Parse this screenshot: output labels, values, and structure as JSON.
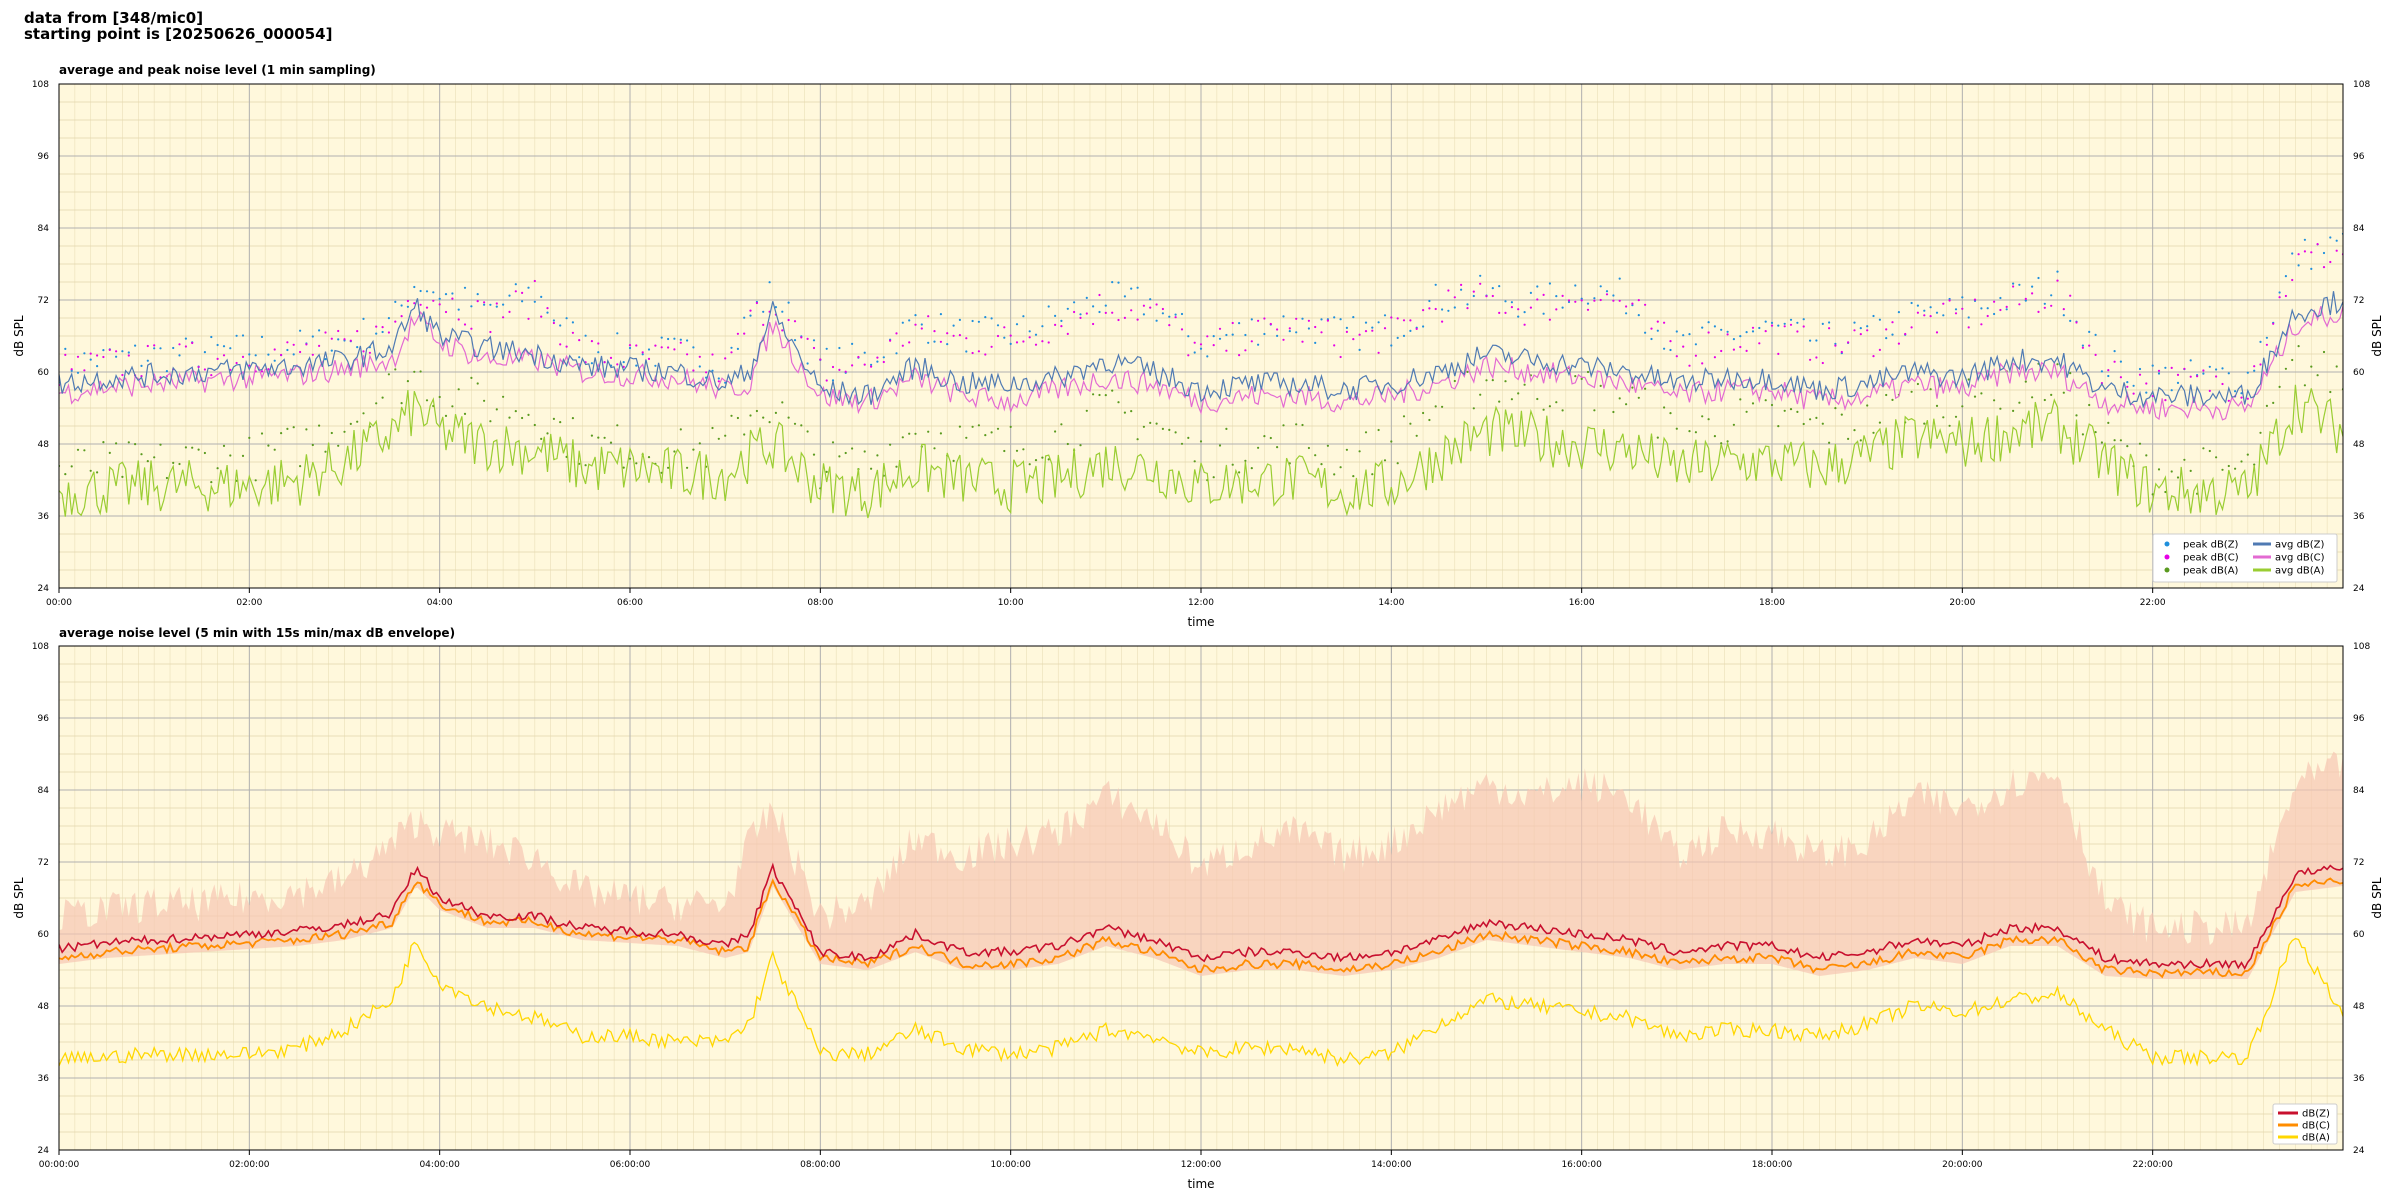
{
  "header": {
    "line1": "data from [348/mic0]",
    "line2": "starting point is [20250626_000054]"
  },
  "colors": {
    "plot_bg": "#fff8dc",
    "peak_z": "#1f8fdc",
    "peak_c": "#e600e6",
    "peak_a": "#5a9a1f",
    "avg_z": "#4f7ab3",
    "avg_c": "#e36ad2",
    "avg_a": "#9acd32",
    "b_z": "#c8102e",
    "b_c": "#ff8c00",
    "b_a": "#ffd700",
    "envelope": "#f7c6b2"
  },
  "chart_data": [
    {
      "type": "line",
      "title": "average and peak noise level (1 min sampling)",
      "xlabel": "time",
      "ylabel": "dB SPL",
      "ylim": [
        24,
        108
      ],
      "xlim": [
        0,
        24
      ],
      "grid": true,
      "legend_position": "bottom-right",
      "x_tick_labels": [
        "00:00",
        "02:00",
        "04:00",
        "06:00",
        "08:00",
        "10:00",
        "12:00",
        "14:00",
        "16:00",
        "18:00",
        "20:00",
        "22:00"
      ],
      "y_tick_labels": [
        "24",
        "36",
        "48",
        "60",
        "72",
        "84",
        "96",
        "108"
      ],
      "legend": [
        "peak dB(Z)",
        "peak dB(C)",
        "peak dB(A)",
        "avg dB(Z)",
        "avg dB(C)",
        "avg dB(A)"
      ],
      "x": [
        0,
        0.5,
        1,
        1.5,
        2,
        2.5,
        3,
        3.5,
        3.75,
        4,
        4.5,
        5,
        5.5,
        6,
        6.5,
        7,
        7.25,
        7.5,
        8,
        8.5,
        9,
        9.5,
        10,
        10.5,
        11,
        11.5,
        12,
        12.5,
        13,
        13.5,
        14,
        14.5,
        15,
        15.5,
        16,
        16.5,
        17,
        17.5,
        18,
        18.5,
        19,
        19.5,
        20,
        20.5,
        21,
        21.5,
        22,
        22.5,
        23,
        23.5,
        24
      ],
      "series": [
        {
          "name": "avg dB(Z)",
          "values": [
            58,
            59,
            59.5,
            60,
            60.5,
            61,
            62,
            64,
            71,
            66,
            64,
            63,
            61,
            60.5,
            60,
            58,
            60,
            70,
            57,
            56,
            61,
            58,
            58,
            59,
            62,
            60,
            57,
            58,
            58,
            57,
            58,
            60,
            63,
            62,
            61,
            60,
            58,
            59,
            59,
            57,
            58,
            60,
            59,
            62,
            62,
            57,
            56,
            56,
            56,
            70,
            72
          ]
        },
        {
          "name": "avg dB(C)",
          "values": [
            56.5,
            57.5,
            58,
            58.5,
            59,
            59.5,
            60.5,
            62,
            69,
            65,
            62,
            62,
            60,
            59.5,
            59,
            57,
            58,
            68,
            56,
            55,
            59,
            56,
            55,
            57,
            59,
            58,
            55,
            56,
            56,
            55,
            56,
            58,
            61,
            60,
            59,
            58,
            56,
            57,
            57,
            55,
            56,
            58,
            57,
            60,
            60,
            55,
            54,
            54,
            54,
            68,
            70
          ]
        },
        {
          "name": "avg dB(A)",
          "values": [
            40,
            40.5,
            41,
            41,
            41,
            42,
            45,
            50,
            54,
            50,
            48,
            47,
            44,
            44,
            43,
            43,
            46,
            48,
            41,
            40,
            44,
            42,
            41,
            42,
            45,
            44,
            41,
            42,
            42,
            40,
            41,
            46,
            50,
            49,
            48,
            47,
            44,
            45,
            45,
            44,
            46,
            49,
            48,
            50,
            51,
            45,
            40,
            40,
            40,
            55,
            50
          ]
        },
        {
          "name": "peak dB(Z)",
          "values": [
            60,
            61,
            61.5,
            62,
            62.5,
            63,
            64,
            67,
            74,
            72,
            69,
            72,
            63,
            62,
            62,
            60,
            68,
            72,
            60,
            61,
            67,
            65,
            65,
            68,
            71,
            70,
            63,
            66,
            67,
            65,
            66,
            71,
            72,
            70,
            73,
            71,
            63,
            65,
            66,
            64,
            65,
            68,
            69,
            71,
            73,
            60,
            58,
            58,
            58,
            78,
            80
          ]
        },
        {
          "name": "peak dB(C)",
          "values": [
            59,
            60,
            60.5,
            61,
            61.5,
            62,
            63,
            66,
            73,
            71,
            68,
            71,
            62,
            61,
            61,
            59,
            67,
            71,
            59,
            60,
            66,
            64,
            64,
            67,
            70,
            69,
            62,
            65,
            66,
            64,
            65,
            70,
            71,
            69,
            72,
            70,
            62,
            64,
            65,
            63,
            64,
            67,
            68,
            70,
            72,
            59,
            57,
            57,
            57,
            77,
            79
          ]
        },
        {
          "name": "peak dB(A)",
          "values": [
            42,
            43,
            43,
            44,
            44,
            46,
            50,
            56,
            58,
            55,
            53,
            52,
            46,
            46,
            45,
            46,
            52,
            53,
            43,
            43,
            49,
            47,
            46,
            48,
            52,
            50,
            44,
            46,
            47,
            44,
            46,
            53,
            57,
            55,
            56,
            54,
            48,
            50,
            51,
            49,
            50,
            54,
            53,
            55,
            57,
            47,
            42,
            42,
            42,
            60,
            57
          ]
        }
      ]
    },
    {
      "type": "line",
      "title": "average noise level (5 min with 15s min/max dB envelope)",
      "xlabel": "time",
      "ylabel": "dB SPL",
      "ylim": [
        24,
        108
      ],
      "xlim": [
        0,
        24
      ],
      "grid": true,
      "legend_position": "bottom-right",
      "x_tick_labels": [
        "00:00:00",
        "02:00:00",
        "04:00:00",
        "06:00:00",
        "08:00:00",
        "10:00:00",
        "12:00:00",
        "14:00:00",
        "16:00:00",
        "18:00:00",
        "20:00:00",
        "22:00:00"
      ],
      "y_tick_labels": [
        "24",
        "36",
        "48",
        "60",
        "72",
        "84",
        "96",
        "108"
      ],
      "legend": [
        "dB(Z)",
        "dB(C)",
        "dB(A)"
      ],
      "x": [
        0,
        0.5,
        1,
        1.5,
        2,
        2.5,
        3,
        3.5,
        3.75,
        4,
        4.5,
        5,
        5.5,
        6,
        6.5,
        7,
        7.25,
        7.5,
        8,
        8.5,
        9,
        9.5,
        10,
        10.5,
        11,
        11.5,
        12,
        12.5,
        13,
        13.5,
        14,
        14.5,
        15,
        15.5,
        16,
        16.5,
        17,
        17.5,
        18,
        18.5,
        19,
        19.5,
        20,
        20.5,
        21,
        21.5,
        22,
        22.5,
        23,
        23.5,
        24
      ],
      "series": [
        {
          "name": "dB(Z)",
          "values": [
            57.5,
            58.5,
            59,
            59.5,
            60,
            60.5,
            61.5,
            63.5,
            71,
            66,
            63,
            63,
            61,
            60.5,
            60,
            58,
            60,
            71,
            57,
            56,
            60,
            57,
            57,
            58,
            61,
            59,
            56,
            57,
            57,
            56,
            57,
            59,
            62,
            61,
            60,
            59,
            57,
            58,
            58,
            56,
            57,
            59,
            58,
            61,
            61,
            56,
            55,
            55,
            55,
            70,
            71
          ]
        },
        {
          "name": "dB(C)",
          "values": [
            56,
            57,
            57.5,
            58,
            58.5,
            59,
            60,
            62,
            69,
            65,
            62,
            62,
            60,
            59.5,
            59,
            57,
            58,
            69,
            56,
            55,
            58,
            55,
            55,
            56,
            59,
            57,
            54,
            55,
            55,
            54,
            55,
            57,
            60,
            59,
            58,
            57,
            55,
            56,
            56,
            54,
            55,
            57,
            56,
            59,
            59,
            54,
            53.5,
            53.5,
            53.5,
            68,
            69
          ]
        },
        {
          "name": "dB(A)",
          "values": [
            39,
            39.5,
            40,
            40,
            40,
            41,
            44,
            49,
            59,
            52,
            48,
            46,
            43,
            43,
            42,
            42,
            45,
            56,
            40,
            40,
            44,
            41,
            40,
            41,
            44,
            43,
            40,
            41,
            41,
            39,
            40,
            45,
            49,
            48,
            47,
            46,
            43,
            44,
            44,
            43,
            45,
            48,
            47,
            49,
            50,
            44,
            39.5,
            39.5,
            39.5,
            60,
            46
          ]
        },
        {
          "name": "envelope max",
          "values": [
            60,
            61,
            62,
            62,
            63,
            64,
            66,
            72,
            76,
            74,
            72,
            70,
            64,
            63,
            62,
            62,
            72,
            78,
            60,
            62,
            73,
            70,
            72,
            74,
            80,
            76,
            68,
            72,
            74,
            70,
            72,
            78,
            82,
            80,
            82,
            80,
            70,
            74,
            74,
            70,
            72,
            80,
            78,
            82,
            84,
            62,
            58,
            58,
            58,
            82,
            85
          ]
        }
      ]
    }
  ]
}
